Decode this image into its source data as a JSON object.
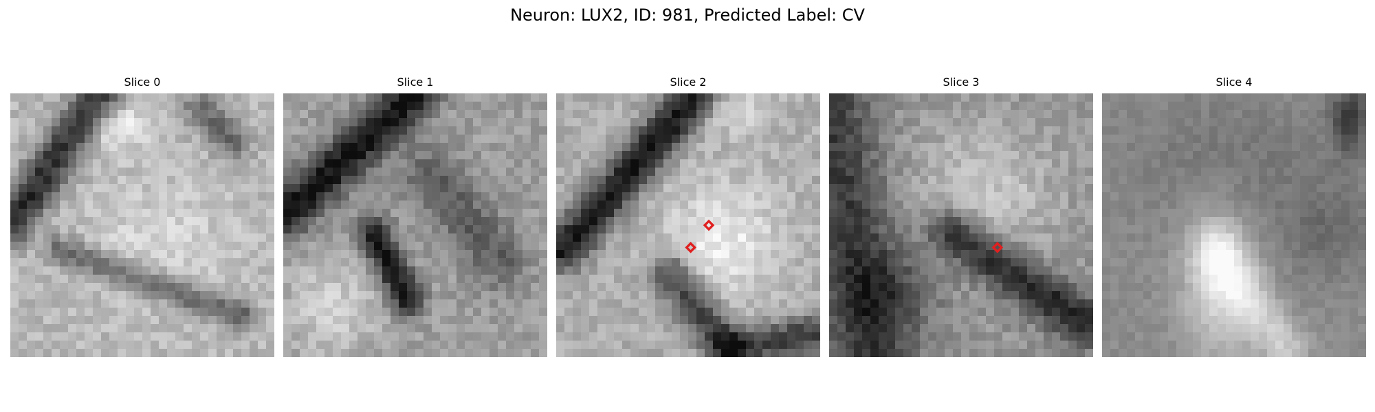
{
  "figure": {
    "title": "Neuron: LUX2, ID: 981, Predicted Label: CV"
  },
  "panels": [
    {
      "title": "Slice 0",
      "seed": 11,
      "pattern": 0,
      "markers": []
    },
    {
      "title": "Slice 1",
      "seed": 23,
      "pattern": 1,
      "markers": []
    },
    {
      "title": "Slice 2",
      "seed": 37,
      "pattern": 2,
      "markers": [
        [
          18.5,
          16
        ],
        [
          16.3,
          18.7
        ]
      ]
    },
    {
      "title": "Slice 3",
      "seed": 53,
      "pattern": 3,
      "markers": [
        [
          20.4,
          18.7
        ]
      ]
    },
    {
      "title": "Slice 4",
      "seed": 71,
      "pattern": 4,
      "markers": []
    }
  ],
  "colors": {
    "marker": "#e02020",
    "background": "#ffffff"
  }
}
